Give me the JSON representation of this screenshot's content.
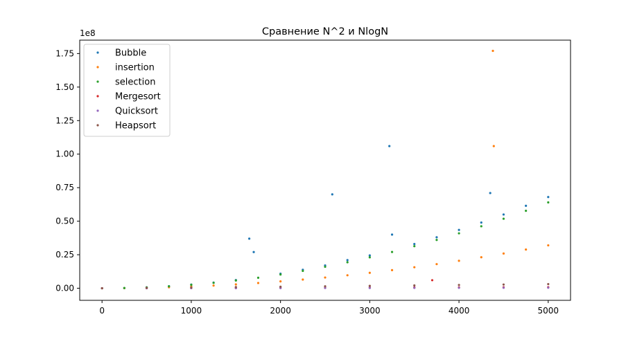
{
  "chart_data": {
    "type": "scatter",
    "title": "Сравнение N^2 и NlogN",
    "xlabel": "",
    "ylabel": "",
    "y_scale_label": "1e8",
    "xlim": [
      -250,
      5250
    ],
    "ylim": [
      -9000000,
      185000000
    ],
    "x_ticks": [
      0,
      1000,
      2000,
      3000,
      4000,
      5000
    ],
    "x_tick_labels": [
      "0",
      "1000",
      "2000",
      "3000",
      "4000",
      "5000"
    ],
    "y_ticks": [
      0,
      25000000,
      50000000,
      75000000,
      100000000,
      125000000,
      150000000,
      175000000
    ],
    "y_tick_labels": [
      "0.00",
      "0.25",
      "0.50",
      "0.75",
      "1.00",
      "1.25",
      "1.50",
      "1.75"
    ],
    "grid": false,
    "legend_position": "top-left",
    "series": [
      {
        "name": "Bubble",
        "color": "#1f77b4",
        "x": [
          0,
          250,
          500,
          750,
          1000,
          1250,
          1500,
          1650,
          1700,
          2000,
          2250,
          2500,
          2580,
          2750,
          3000,
          3220,
          3250,
          3500,
          3750,
          4000,
          4250,
          4350,
          4500,
          4750,
          5000
        ],
        "y": [
          0,
          170000,
          680000,
          1530000,
          2720000,
          4250000,
          6120000,
          37000000,
          27000000,
          10900000,
          13800000,
          17000000,
          70000000,
          21000000,
          24500000,
          106000000,
          40000000,
          33000000,
          38000000,
          43500000,
          49000000,
          71000000,
          55000000,
          61500000,
          68000000
        ]
      },
      {
        "name": "insertion",
        "color": "#ff7f0e",
        "x": [
          0,
          250,
          500,
          750,
          1000,
          1250,
          1500,
          1750,
          2000,
          2250,
          2500,
          2750,
          3000,
          3250,
          3500,
          3750,
          4000,
          4250,
          4380,
          4390,
          4500,
          4750,
          5000
        ],
        "y": [
          0,
          80000,
          320000,
          720000,
          1280000,
          2000000,
          2880000,
          3920000,
          5120000,
          6480000,
          8000000,
          9680000,
          11520000,
          13520000,
          15680000,
          18000000,
          20480000,
          23120000,
          177000000,
          106000000,
          25920000,
          28880000,
          32000000
        ]
      },
      {
        "name": "selection",
        "color": "#2ca02c",
        "x": [
          0,
          250,
          500,
          750,
          1000,
          1250,
          1500,
          1750,
          2000,
          2250,
          2500,
          2750,
          3000,
          3250,
          3500,
          3750,
          4000,
          4250,
          4500,
          4750,
          5000
        ],
        "y": [
          0,
          160000,
          640000,
          1440000,
          2560000,
          4000000,
          5760000,
          7840000,
          10240000,
          12960000,
          16000000,
          19360000,
          23040000,
          27040000,
          31360000,
          36000000,
          40960000,
          46240000,
          51840000,
          57760000,
          64000000
        ]
      },
      {
        "name": "Mergesort",
        "color": "#d62728",
        "x": [
          0,
          500,
          1000,
          1500,
          2000,
          2500,
          3000,
          3500,
          3700,
          4000,
          4500,
          5000
        ],
        "y": [
          0,
          60000,
          130000,
          210000,
          290000,
          380000,
          460000,
          550000,
          6000000,
          640000,
          730000,
          820000
        ]
      },
      {
        "name": "Quicksort",
        "color": "#9467bd",
        "x": [
          0,
          500,
          1000,
          1500,
          2000,
          2500,
          3000,
          3500,
          4000,
          4500,
          5000
        ],
        "y": [
          0,
          30000,
          70000,
          110000,
          150000,
          200000,
          240000,
          290000,
          330000,
          380000,
          420000
        ]
      },
      {
        "name": "Heapsort",
        "color": "#8c564b",
        "x": [
          0,
          500,
          1000,
          1500,
          2000,
          2500,
          3000,
          3500,
          4000,
          4500,
          5000
        ],
        "y": [
          0,
          280000,
          560000,
          860000,
          1170000,
          1480000,
          1800000,
          2120000,
          2450000,
          2780000,
          3100000
        ]
      }
    ]
  }
}
